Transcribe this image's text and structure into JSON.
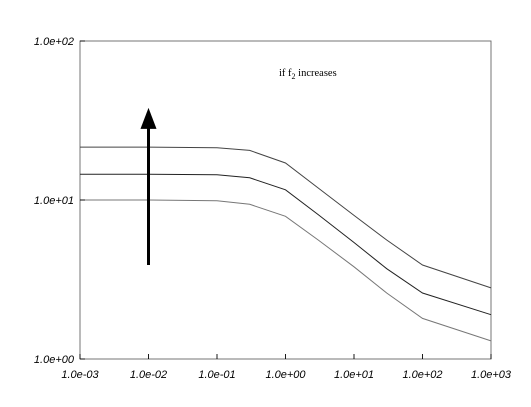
{
  "chart_data": {
    "type": "line",
    "title": "",
    "xlabel": "",
    "ylabel": "",
    "x_scale": "log",
    "y_scale": "log",
    "xlim": [
      0.001,
      1000
    ],
    "ylim": [
      1,
      100
    ],
    "x_ticks": [
      "1.0e-03",
      "1.0e-02",
      "1.0e-01",
      "1.0e+00",
      "1.0e+01",
      "1.0e+02",
      "1.0e+03"
    ],
    "y_ticks": [
      "1.0e+00",
      "1.0e+01",
      "1.0e+02"
    ],
    "grid": false,
    "x": [
      0.001,
      0.01,
      0.1,
      0.3,
      1,
      3,
      10,
      30,
      100,
      1000
    ],
    "series": [
      {
        "values": [
          10.0,
          10.0,
          9.9,
          9.4,
          7.9,
          5.6,
          3.8,
          2.6,
          1.8,
          1.3
        ],
        "color": "#777777"
      },
      {
        "values": [
          14.5,
          14.5,
          14.4,
          13.8,
          11.6,
          8.1,
          5.4,
          3.7,
          2.6,
          1.9
        ],
        "color": "#222222"
      },
      {
        "values": [
          21.5,
          21.5,
          21.3,
          20.5,
          17.1,
          11.9,
          8.0,
          5.6,
          3.9,
          2.8
        ],
        "color": "#444444"
      }
    ],
    "annotation": {
      "text_main": "if f",
      "text_sub": "2",
      "text_tail": " increases",
      "arrow": {
        "x": 0.01,
        "y_from": 3.9,
        "y_to": 38
      }
    }
  }
}
